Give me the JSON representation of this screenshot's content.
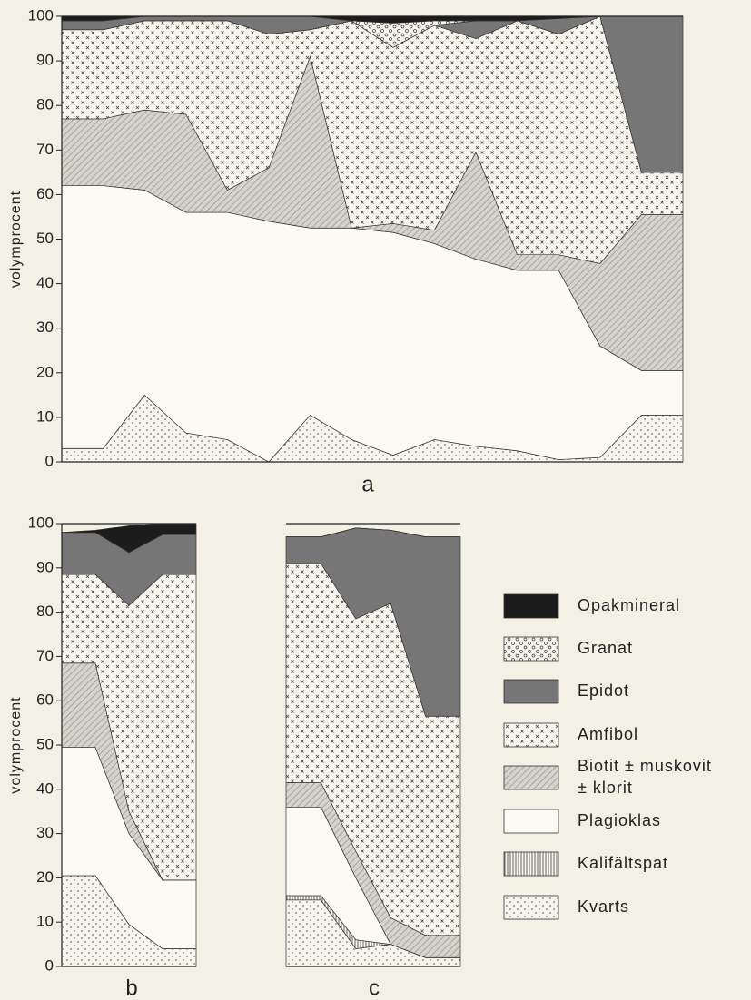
{
  "legend": [
    {
      "name": "Kvarts",
      "pattern": "dots",
      "color": "#f6f4ec"
    },
    {
      "name": "Kalifältspat",
      "pattern": "vlines",
      "color": "#f6f4ec"
    },
    {
      "name": "Plagioklas",
      "pattern": "solid",
      "color": "#fbfaf5"
    },
    {
      "name": [
        "Biotit ± muskovit",
        "± klorit"
      ],
      "pattern": "hatch",
      "color": "#d4d3cc"
    },
    {
      "name": "Amfibol",
      "pattern": "cross",
      "color": "#f6f4ec"
    },
    {
      "name": "Epidot",
      "pattern": "solid",
      "color": "#767676"
    },
    {
      "name": "Granat",
      "pattern": "circles",
      "color": "#f6f4ec"
    },
    {
      "name": "Opakmineral",
      "pattern": "solid",
      "color": "#1c1c1c"
    }
  ],
  "chart_data": [
    {
      "type": "stacked-area",
      "title": "a",
      "ylabel": "volymprocent",
      "categories": [
        null,
        null,
        null,
        null,
        null,
        null,
        null,
        null,
        null,
        null,
        null,
        null,
        null,
        null,
        null,
        null
      ],
      "ylim": [
        0,
        100
      ],
      "yticks": [
        0,
        10,
        20,
        30,
        40,
        50,
        60,
        70,
        80,
        90,
        100
      ],
      "series": [
        {
          "values": [
            3,
            3,
            15,
            6.5,
            5,
            0,
            10.5,
            5,
            1.5,
            5,
            3.5,
            2.5,
            0.5,
            1,
            10.5,
            10.5
          ]
        },
        {
          "values": [
            0,
            0,
            0,
            0,
            0,
            0,
            0,
            0,
            0,
            0,
            0,
            0,
            0,
            0,
            0,
            0
          ]
        },
        {
          "values": [
            59,
            59,
            46,
            49.5,
            51,
            54,
            42,
            47.5,
            50,
            44,
            42,
            40.5,
            42.5,
            25,
            10,
            10
          ]
        },
        {
          "values": [
            15,
            15,
            18,
            22,
            5,
            12,
            38.5,
            0,
            2,
            3,
            24,
            3.5,
            3.5,
            18.5,
            35,
            35
          ]
        },
        {
          "values": [
            20,
            20,
            20,
            21,
            38,
            30,
            6,
            46.5,
            39.5,
            46,
            25.5,
            52.5,
            49.5,
            55.5,
            9.5,
            9.5
          ]
        },
        {
          "values": [
            2,
            2,
            1,
            1,
            1,
            4,
            3,
            0,
            0,
            0,
            4,
            0,
            3.5,
            0,
            35,
            35
          ]
        },
        {
          "values": [
            0,
            0,
            0,
            0,
            0,
            0,
            0,
            0,
            5.5,
            1,
            0,
            0,
            0,
            0,
            0,
            0
          ]
        },
        {
          "values": [
            1,
            1,
            0,
            0,
            0,
            0,
            0,
            1,
            1.5,
            1,
            1,
            1,
            0.5,
            0,
            0,
            0
          ]
        }
      ]
    },
    {
      "type": "stacked-area",
      "title": "b",
      "ylabel": "volymprocent",
      "categories": [
        null,
        null,
        null,
        null,
        null
      ],
      "ylim": [
        0,
        100
      ],
      "yticks": [
        0,
        10,
        20,
        30,
        40,
        50,
        60,
        70,
        80,
        90,
        100
      ],
      "series": [
        {
          "values": [
            20.5,
            20.5,
            9.5,
            4,
            4
          ]
        },
        {
          "values": [
            0,
            0,
            0,
            0,
            0
          ]
        },
        {
          "values": [
            29,
            29,
            20.5,
            15.5,
            15.5
          ]
        },
        {
          "values": [
            19,
            19,
            5,
            0,
            0
          ]
        },
        {
          "values": [
            20,
            20,
            46.5,
            69,
            69
          ]
        },
        {
          "values": [
            9.5,
            9.5,
            12,
            9,
            9
          ]
        },
        {
          "values": [
            0,
            0,
            0,
            0,
            0
          ]
        },
        {
          "values": [
            0,
            0.5,
            6,
            2.5,
            2.5
          ]
        }
      ]
    },
    {
      "type": "stacked-area",
      "title": "c",
      "categories": [
        null,
        null,
        null,
        null,
        null,
        null
      ],
      "ylim": [
        0,
        100
      ],
      "series": [
        {
          "values": [
            15,
            15,
            4,
            5,
            2,
            2
          ]
        },
        {
          "values": [
            1,
            1,
            2,
            0,
            0,
            0
          ]
        },
        {
          "values": [
            20,
            20,
            14,
            0,
            0,
            0
          ]
        },
        {
          "values": [
            5.5,
            5.5,
            6,
            6,
            5,
            5
          ]
        },
        {
          "values": [
            49.5,
            49.5,
            52.5,
            71,
            49.5,
            49.5
          ]
        },
        {
          "values": [
            6,
            6,
            20.5,
            16.5,
            40.5,
            40.5
          ]
        },
        {
          "values": [
            0,
            0,
            0,
            0,
            0,
            0
          ]
        },
        {
          "values": [
            0,
            0,
            0,
            0,
            0,
            0
          ]
        }
      ]
    }
  ]
}
